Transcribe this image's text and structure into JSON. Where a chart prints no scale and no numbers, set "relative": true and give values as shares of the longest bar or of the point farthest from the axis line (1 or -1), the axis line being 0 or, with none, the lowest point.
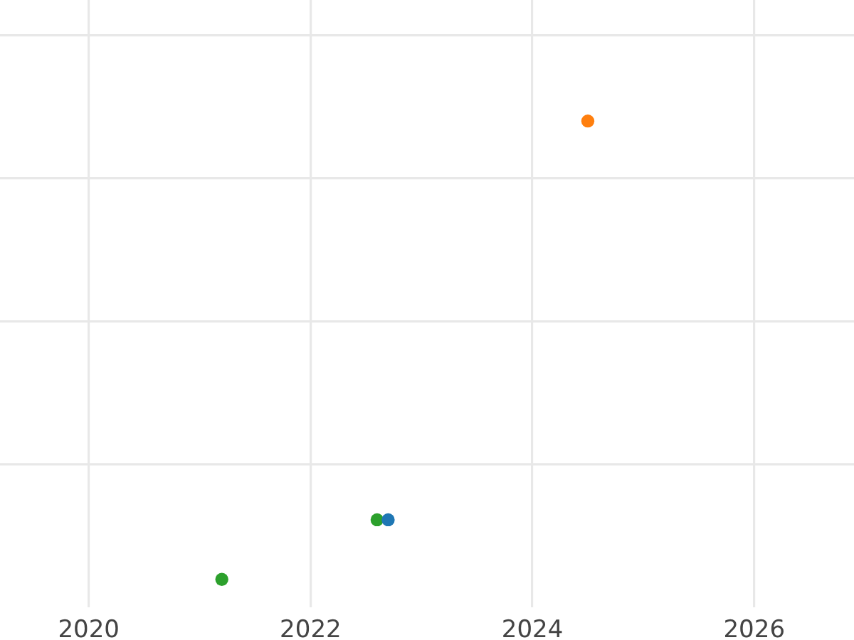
{
  "chart_data": {
    "type": "scatter",
    "relative": true,
    "xlim": [
      2019.2,
      2026.9
    ],
    "xticks": [
      2020,
      2022,
      2024,
      2026
    ],
    "grid": true,
    "marker": "circle",
    "series": [
      {
        "color": "#1f77b4",
        "x": [
          2022.7
        ],
        "values": [
          0.13
        ]
      },
      {
        "color": "#ff7f0e",
        "x": [
          2024.5
        ],
        "values": [
          1
        ]
      },
      {
        "color": "#2ca02c",
        "x": [
          2021.2,
          2022.6
        ],
        "values": [
          0,
          0.13
        ]
      }
    ]
  }
}
